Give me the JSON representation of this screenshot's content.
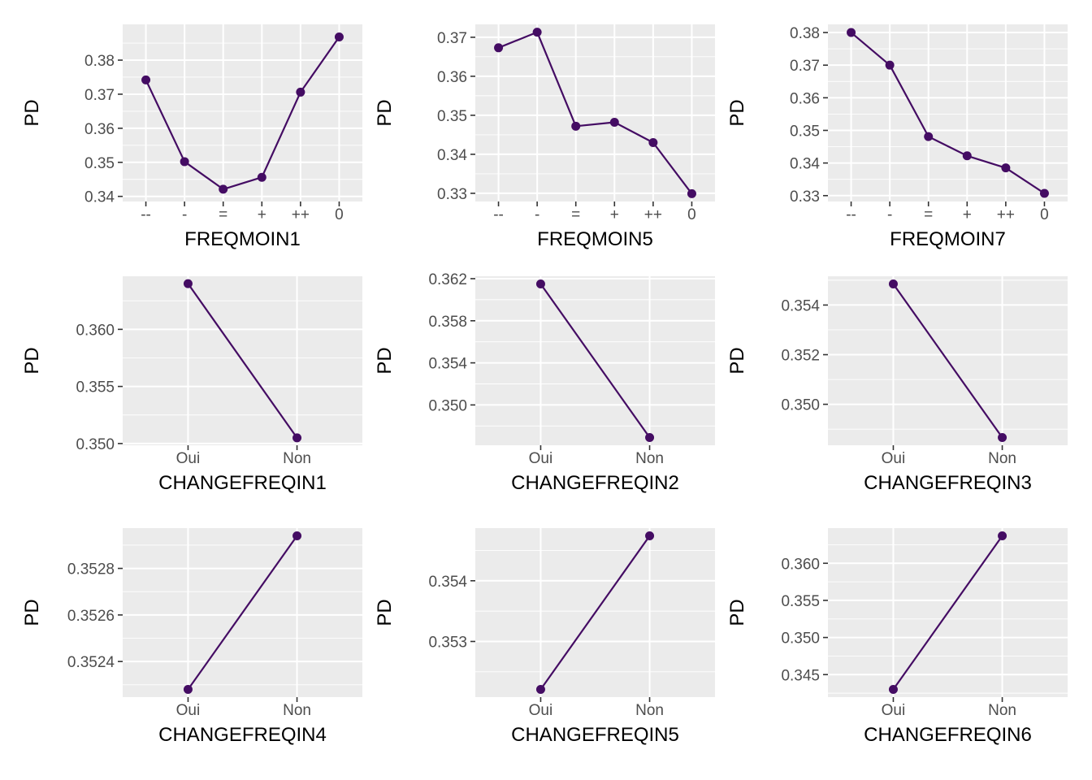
{
  "colors": {
    "panel_bg": "#ebebeb",
    "grid_major": "#ffffff",
    "line": "#440c63",
    "tick": "#333333"
  },
  "chart_data": [
    {
      "type": "line",
      "xlabel": "FREQMOIN1",
      "ylabel": "PD",
      "categories": [
        "--",
        "-",
        "=",
        "+",
        "++",
        "0"
      ],
      "values": [
        0.3742,
        0.3502,
        0.3421,
        0.3456,
        0.3706,
        0.3868
      ],
      "ylim": [
        0.3385,
        0.3905
      ],
      "yticks": [
        0.34,
        0.35,
        0.36,
        0.37,
        0.38
      ],
      "ytick_labels": [
        "0.34",
        "0.35",
        "0.36",
        "0.37",
        "0.38"
      ],
      "grid": true
    },
    {
      "type": "line",
      "xlabel": "FREQMOIN5",
      "ylabel": "PD",
      "categories": [
        "--",
        "-",
        "=",
        "+",
        "++",
        "0"
      ],
      "values": [
        0.3673,
        0.3713,
        0.3472,
        0.3482,
        0.343,
        0.3299
      ],
      "ylim": [
        0.3279,
        0.3733
      ],
      "yticks": [
        0.33,
        0.34,
        0.35,
        0.36,
        0.37
      ],
      "ytick_labels": [
        "0.33",
        "0.34",
        "0.35",
        "0.36",
        "0.37"
      ],
      "grid": true
    },
    {
      "type": "line",
      "xlabel": "FREQMOIN7",
      "ylabel": "PD",
      "categories": [
        "--",
        "-",
        "=",
        "+",
        "++",
        "0"
      ],
      "values": [
        0.38,
        0.37,
        0.3481,
        0.3422,
        0.3385,
        0.3307
      ],
      "ylim": [
        0.3282,
        0.3825
      ],
      "yticks": [
        0.33,
        0.34,
        0.35,
        0.36,
        0.37,
        0.38
      ],
      "ytick_labels": [
        "0.33",
        "0.34",
        "0.35",
        "0.36",
        "0.37",
        "0.38"
      ],
      "grid": true
    },
    {
      "type": "line",
      "xlabel": "CHANGEFREQIN1",
      "ylabel": "PD",
      "categories": [
        "Oui",
        "Non"
      ],
      "values": [
        0.364,
        0.3505
      ],
      "ylim": [
        0.34985,
        0.36465
      ],
      "yticks": [
        0.35,
        0.355,
        0.36
      ],
      "ytick_labels": [
        "0.350",
        "0.355",
        "0.360"
      ],
      "grid": true
    },
    {
      "type": "line",
      "xlabel": "CHANGEFREQIN2",
      "ylabel": "PD",
      "categories": [
        "Oui",
        "Non"
      ],
      "values": [
        0.3615,
        0.3469
      ],
      "ylim": [
        0.34617,
        0.36223
      ],
      "yticks": [
        0.35,
        0.354,
        0.358,
        0.362
      ],
      "ytick_labels": [
        "0.350",
        "0.354",
        "0.358",
        "0.362"
      ],
      "grid": true
    },
    {
      "type": "line",
      "xlabel": "CHANGEFREQIN3",
      "ylabel": "PD",
      "categories": [
        "Oui",
        "Non"
      ],
      "values": [
        0.35485,
        0.34866
      ],
      "ylim": [
        0.34835,
        0.35516
      ],
      "yticks": [
        0.35,
        0.352,
        0.354
      ],
      "ytick_labels": [
        "0.350",
        "0.352",
        "0.354"
      ],
      "grid": true
    },
    {
      "type": "line",
      "xlabel": "CHANGEFREQIN4",
      "ylabel": "PD",
      "categories": [
        "Oui",
        "Non"
      ],
      "values": [
        0.35228,
        0.35294
      ],
      "ylim": [
        0.352247,
        0.352973
      ],
      "yticks": [
        0.3524,
        0.3526,
        0.3528
      ],
      "ytick_labels": [
        "0.3524",
        "0.3526",
        "0.3528"
      ],
      "grid": true
    },
    {
      "type": "line",
      "xlabel": "CHANGEFREQIN5",
      "ylabel": "PD",
      "categories": [
        "Oui",
        "Non"
      ],
      "values": [
        0.35221,
        0.35474
      ],
      "ylim": [
        0.352083,
        0.354867
      ],
      "yticks": [
        0.353,
        0.354
      ],
      "ytick_labels": [
        "0.353",
        "0.354"
      ],
      "grid": true
    },
    {
      "type": "line",
      "xlabel": "CHANGEFREQIN6",
      "ylabel": "PD",
      "categories": [
        "Oui",
        "Non"
      ],
      "values": [
        0.343,
        0.3637
      ],
      "ylim": [
        0.341965,
        0.364735
      ],
      "yticks": [
        0.345,
        0.35,
        0.355,
        0.36
      ],
      "ytick_labels": [
        "0.345",
        "0.350",
        "0.355",
        "0.360"
      ],
      "grid": true
    }
  ]
}
